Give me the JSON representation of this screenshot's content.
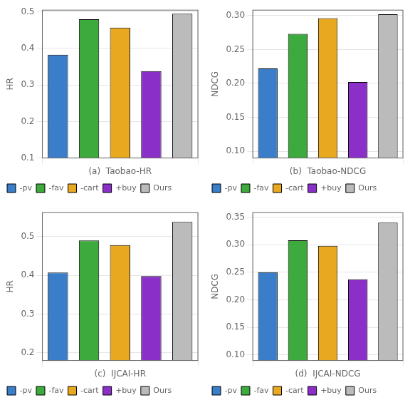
{
  "chart_data": [
    {
      "type": "bar",
      "xlabel": "(a)  Taobao-HR",
      "ylabel": "HR",
      "categories": [
        null
      ],
      "series": [
        {
          "name": "-pv",
          "color": "#3a7dc9",
          "values": [
            0.383
          ]
        },
        {
          "name": "-fav",
          "color": "#3daa3d",
          "values": [
            0.48
          ]
        },
        {
          "name": "-cart",
          "color": "#e8a820",
          "values": [
            0.457
          ]
        },
        {
          "name": "+buy",
          "color": "#8b2fc9",
          "values": [
            0.338
          ]
        },
        {
          "name": "Ours",
          "color": "#bbbbbb",
          "values": [
            0.495
          ]
        }
      ],
      "ylim": [
        0.1,
        0.505
      ],
      "yticks": [
        0.1,
        0.2,
        0.3,
        0.4,
        0.5
      ],
      "grid": true,
      "legend": "lower left",
      "tick_labels": "y"
    },
    {
      "type": "bar",
      "xlabel": "(b)  Taobao-NDCG",
      "ylabel": "NDCG",
      "categories": [
        null
      ],
      "series": [
        {
          "name": "-pv",
          "color": "#3a7dc9",
          "values": [
            0.222
          ]
        },
        {
          "name": "-fav",
          "color": "#3daa3d",
          "values": [
            0.273
          ]
        },
        {
          "name": "-cart",
          "color": "#e8a820",
          "values": [
            0.296
          ]
        },
        {
          "name": "+buy",
          "color": "#8b2fc9",
          "values": [
            0.202
          ]
        },
        {
          "name": "Ours",
          "color": "#bbbbbb",
          "values": [
            0.302
          ]
        }
      ],
      "ylim": [
        0.09,
        0.308
      ],
      "yticks": [
        {
          "value": 0.1,
          "label": "0.10"
        },
        0.15,
        {
          "value": 0.2,
          "label": "0.20"
        },
        0.25,
        {
          "value": 0.3,
          "label": "0.30"
        }
      ],
      "grid": true,
      "legend": "lower left",
      "tick_labels": "y"
    },
    {
      "type": "bar",
      "xlabel": "(c)  IJCAI-HR",
      "ylabel": "HR",
      "categories": [
        null
      ],
      "series": [
        {
          "name": "-pv",
          "color": "#3a7dc9",
          "values": [
            0.407
          ]
        },
        {
          "name": "-fav",
          "color": "#3daa3d",
          "values": [
            0.49
          ]
        },
        {
          "name": "-cart",
          "color": "#e8a820",
          "values": [
            0.478
          ]
        },
        {
          "name": "+buy",
          "color": "#8b2fc9",
          "values": [
            0.398
          ]
        },
        {
          "name": "Ours",
          "color": "#bbbbbb",
          "values": [
            0.538
          ]
        }
      ],
      "ylim": [
        0.18,
        0.562
      ],
      "yticks": [
        0.2,
        0.3,
        0.4,
        0.5
      ],
      "grid": true,
      "legend": "lower left",
      "tick_labels": "y"
    },
    {
      "type": "bar",
      "xlabel": "(d)  IJCAI-NDCG",
      "ylabel": "NDCG",
      "categories": [
        null
      ],
      "series": [
        {
          "name": "-pv",
          "color": "#3a7dc9",
          "values": [
            0.25
          ]
        },
        {
          "name": "-fav",
          "color": "#3daa3d",
          "values": [
            0.308
          ]
        },
        {
          "name": "-cart",
          "color": "#e8a820",
          "values": [
            0.298
          ]
        },
        {
          "name": "+buy",
          "color": "#8b2fc9",
          "values": [
            0.237
          ]
        },
        {
          "name": "Ours",
          "color": "#bbbbbb",
          "values": [
            0.34
          ]
        }
      ],
      "ylim": [
        0.09,
        0.358
      ],
      "yticks": [
        {
          "value": 0.1,
          "label": "0.10"
        },
        0.15,
        {
          "value": 0.2,
          "label": "0.20"
        },
        0.25,
        {
          "value": 0.3,
          "label": "0.30"
        },
        0.35
      ],
      "grid": true,
      "legend": "lower left",
      "tick_labels": "y"
    }
  ]
}
